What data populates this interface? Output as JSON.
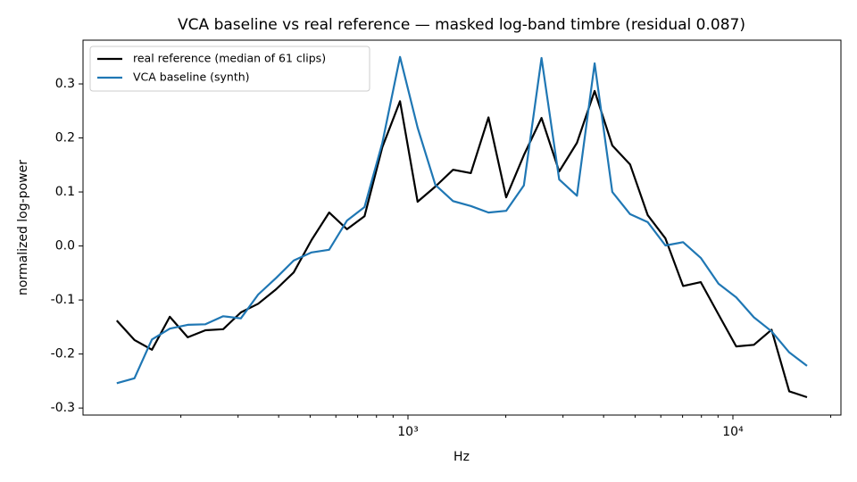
{
  "chart_data": {
    "type": "line",
    "title": "VCA baseline vs real reference — masked log-band timbre (residual 0.087)",
    "xlabel": "Hz",
    "ylabel": "normalized log-power",
    "xscale": "log",
    "x": [
      127,
      144,
      163,
      185,
      210,
      238,
      270,
      306,
      346,
      393,
      445,
      505,
      572,
      649,
      735,
      834,
      945,
      1071,
      1214,
      1376,
      1561,
      1769,
      2005,
      2273,
      2576,
      2921,
      3311,
      3753,
      4255,
      4824,
      5468,
      6199,
      7027,
      7966,
      9030,
      10235,
      11603,
      13152,
      14910,
      16904
    ],
    "series": [
      {
        "name": "real reference (median of 61 clips)",
        "color": "#000000",
        "values": [
          -0.138,
          -0.174,
          -0.192,
          -0.131,
          -0.169,
          -0.156,
          -0.154,
          -0.123,
          -0.107,
          -0.08,
          -0.049,
          0.011,
          0.062,
          0.031,
          0.055,
          0.183,
          0.268,
          0.082,
          0.11,
          0.141,
          0.135,
          0.238,
          0.09,
          0.168,
          0.237,
          0.138,
          0.191,
          0.287,
          0.186,
          0.151,
          0.057,
          0.014,
          -0.074,
          -0.067,
          -0.127,
          -0.186,
          -0.183,
          -0.155,
          -0.269,
          -0.28
        ]
      },
      {
        "name": "VCA baseline (synth)",
        "color": "#1f77b4",
        "values": [
          -0.254,
          -0.245,
          -0.173,
          -0.153,
          -0.146,
          -0.145,
          -0.13,
          -0.134,
          -0.09,
          -0.059,
          -0.027,
          -0.012,
          -0.007,
          0.047,
          0.072,
          0.191,
          0.35,
          0.219,
          0.113,
          0.083,
          0.074,
          0.062,
          0.065,
          0.112,
          0.348,
          0.123,
          0.093,
          0.338,
          0.1,
          0.059,
          0.044,
          0.001,
          0.007,
          -0.022,
          -0.07,
          -0.095,
          -0.132,
          -0.158,
          -0.197,
          -0.222
        ]
      }
    ],
    "xlim": [
      100,
      21500
    ],
    "xticks": [
      {
        "value": 1000,
        "label": "10³"
      },
      {
        "value": 10000,
        "label": "10⁴"
      }
    ],
    "xminorticks": [
      200,
      300,
      400,
      500,
      600,
      700,
      800,
      900,
      2000,
      3000,
      4000,
      5000,
      6000,
      7000,
      8000,
      9000,
      20000
    ],
    "ylim": [
      -0.313,
      0.381
    ],
    "yticks": [
      -0.3,
      -0.2,
      -0.1,
      {
        "value": 0,
        "label": "0.0"
      },
      0.1,
      0.2,
      0.3
    ],
    "legend": "upper left"
  }
}
